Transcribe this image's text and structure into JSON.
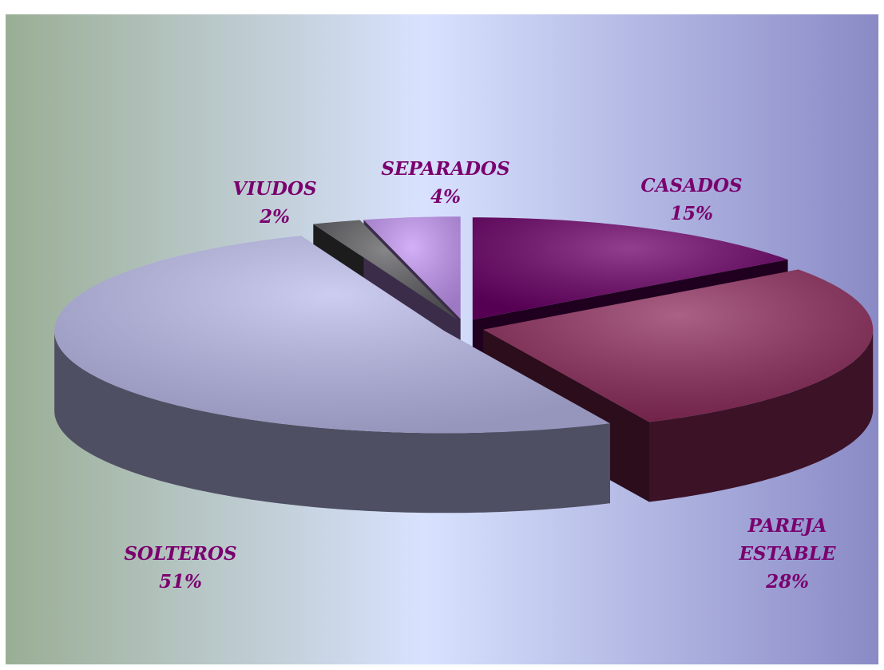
{
  "chart_data": {
    "type": "pie3d",
    "categories": [
      "CASADOS",
      "PAREJA ESTABLE",
      "SOLTEROS",
      "VIUDOS",
      "SEPARADOS"
    ],
    "values": [
      15,
      28,
      51,
      2,
      4
    ],
    "value_labels": [
      "15%",
      "28%",
      "51%",
      "2%",
      "4%"
    ],
    "colors": [
      "#6c0068",
      "#8e2c5c",
      "#bcbcec",
      "#5e5e62",
      "#c496f4"
    ]
  }
}
